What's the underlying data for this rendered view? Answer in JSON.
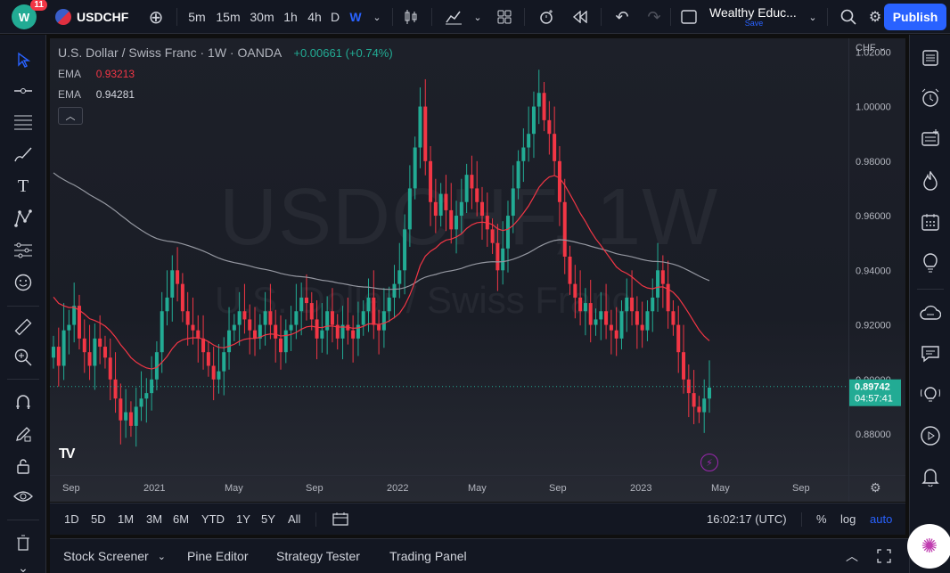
{
  "topbar": {
    "notification_count": "11",
    "symbol": "USDCHF",
    "timeframes": [
      "5m",
      "15m",
      "30m",
      "1h",
      "4h",
      "D",
      "W"
    ],
    "active_timeframe": "W",
    "layout_name": "Wealthy Educ...",
    "layout_save": "Save",
    "publish_label": "Publish"
  },
  "legend": {
    "title": "U.S. Dollar / Swiss Franc · 1W · OANDA",
    "change": "+0.00661 (+0.74%)",
    "ema1_label": "EMA",
    "ema1_value": "0.93213",
    "ema2_label": "EMA",
    "ema2_value": "0.94281"
  },
  "watermark": {
    "symbol": "USDCHF, 1W",
    "name": "U.S. Dollar / Swiss Franc"
  },
  "price_axis": {
    "currency": "CHF",
    "labels": [
      "1.02000",
      "1.00000",
      "0.98000",
      "0.96000",
      "0.94000",
      "0.92000",
      "0.90000",
      "0.88000"
    ],
    "current_price": "0.89742",
    "countdown": "04:57:41"
  },
  "time_axis": {
    "labels": [
      "Sep",
      "2021",
      "May",
      "Sep",
      "2022",
      "May",
      "Sep",
      "2023",
      "May",
      "Sep"
    ]
  },
  "periodbar": {
    "ranges": [
      "1D",
      "5D",
      "1M",
      "3M",
      "6M",
      "YTD",
      "1Y",
      "5Y",
      "All"
    ],
    "clock": "16:02:17 (UTC)",
    "percent": "%",
    "log": "log",
    "auto": "auto"
  },
  "bottom_panel": {
    "tabs": [
      "Stock Screener",
      "Pine Editor",
      "Strategy Tester",
      "Trading Panel"
    ]
  },
  "colors": {
    "up": "#22ab94",
    "down": "#f23645",
    "ema_fast": "#f23645",
    "ema_slow": "#9598a1",
    "accent": "#2962ff"
  },
  "chart_data": {
    "type": "candlestick",
    "symbol": "USDCHF",
    "interval": "1W",
    "ylim": [
      0.865,
      1.025
    ],
    "x_labels": [
      "Sep",
      "2021",
      "May",
      "Sep",
      "2022",
      "May",
      "Sep",
      "2023",
      "May",
      "Sep"
    ],
    "closes": [
      0.912,
      0.905,
      0.918,
      0.92,
      0.927,
      0.915,
      0.91,
      0.905,
      0.915,
      0.912,
      0.908,
      0.9,
      0.893,
      0.885,
      0.888,
      0.883,
      0.89,
      0.893,
      0.895,
      0.9,
      0.91,
      0.925,
      0.93,
      0.94,
      0.935,
      0.925,
      0.92,
      0.918,
      0.915,
      0.91,
      0.905,
      0.9,
      0.903,
      0.91,
      0.918,
      0.92,
      0.925,
      0.922,
      0.918,
      0.915,
      0.92,
      0.925,
      0.92,
      0.915,
      0.91,
      0.918,
      0.92,
      0.925,
      0.93,
      0.928,
      0.922,
      0.915,
      0.918,
      0.925,
      0.92,
      0.915,
      0.92,
      0.918,
      0.915,
      0.92,
      0.925,
      0.93,
      0.92,
      0.918,
      0.925,
      0.93,
      0.935,
      0.94,
      0.955,
      0.97,
      0.985,
      1.0,
      0.98,
      0.965,
      0.96,
      0.968,
      0.962,
      0.955,
      0.96,
      0.965,
      0.975,
      0.97,
      0.965,
      0.96,
      0.955,
      0.95,
      0.94,
      0.948,
      0.96,
      0.97,
      0.98,
      0.985,
      0.99,
      1.0,
      1.005,
      0.995,
      0.99,
      0.98,
      0.965,
      0.945,
      0.935,
      0.93,
      0.925,
      0.928,
      0.92,
      0.922,
      0.925,
      0.92,
      0.918,
      0.915,
      0.925,
      0.93,
      0.925,
      0.92,
      0.918,
      0.925,
      0.93,
      0.94,
      0.935,
      0.925,
      0.92,
      0.91,
      0.9,
      0.895,
      0.89,
      0.888,
      0.893,
      0.897
    ],
    "ema_fast_last": 0.93213,
    "ema_slow_last": 0.94281,
    "last": 0.89742
  }
}
